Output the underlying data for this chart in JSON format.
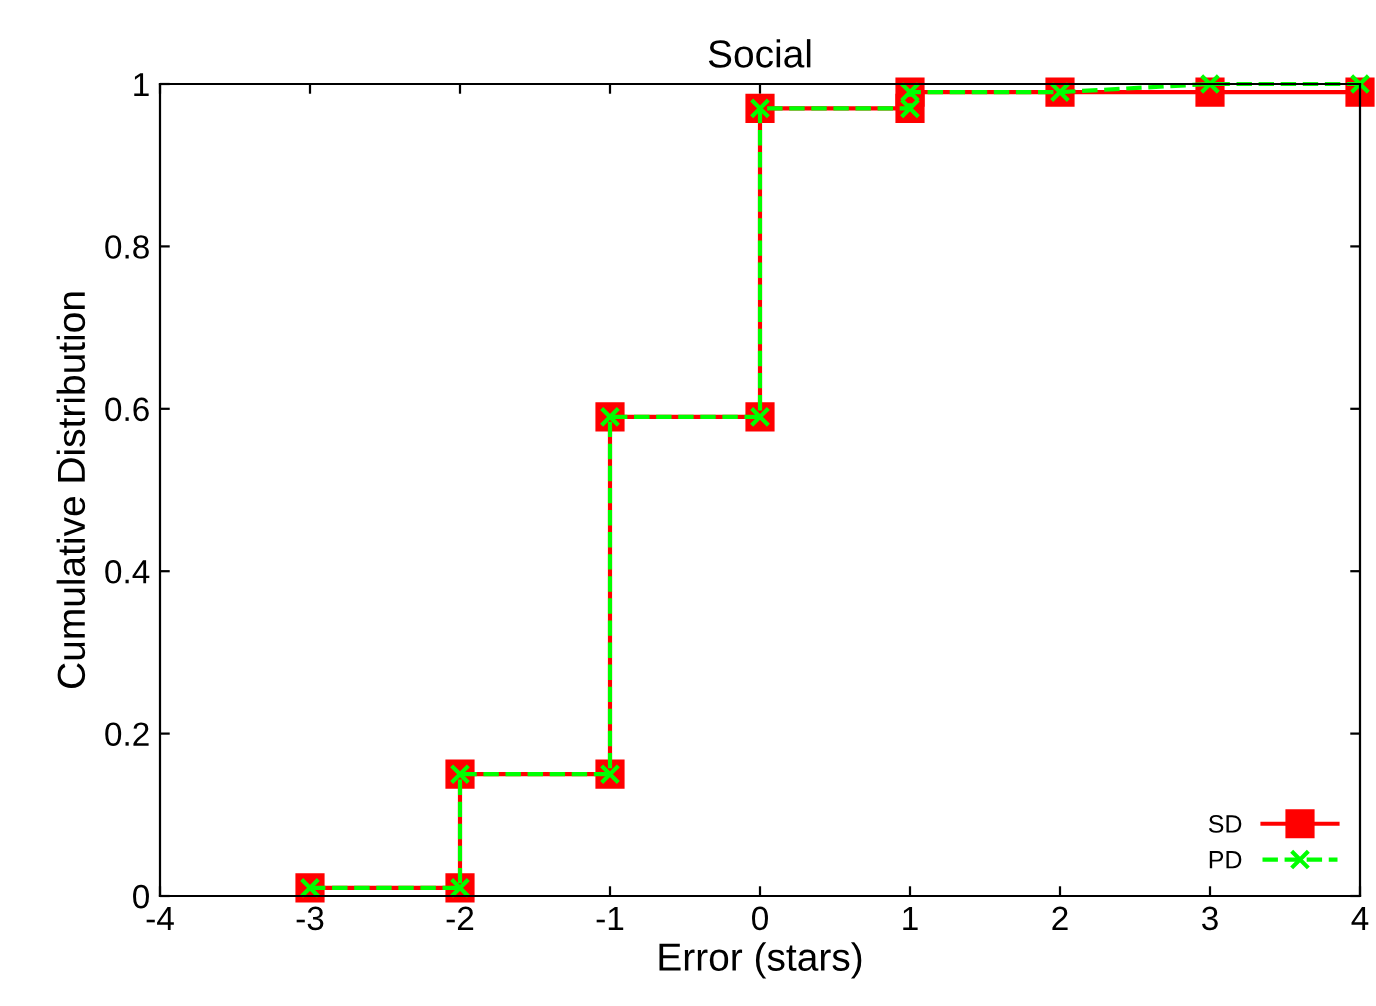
{
  "chart_data": {
    "type": "line",
    "title": "Social",
    "xlabel": "Error (stars)",
    "ylabel": "Cumulative Distribution",
    "x": [
      -3,
      -2,
      -2,
      -1,
      -1,
      0,
      0,
      1,
      1,
      2,
      3,
      4
    ],
    "series": [
      {
        "name": "SD",
        "color": "#ff0000",
        "marker": "square",
        "line_style": "solid",
        "values": [
          0.01,
          0.01,
          0.15,
          0.15,
          0.59,
          0.59,
          0.97,
          0.97,
          0.99,
          0.99,
          0.99,
          0.99
        ]
      },
      {
        "name": "PD",
        "color": "#00ff00",
        "marker": "cross",
        "line_style": "dashed",
        "values": [
          0.01,
          0.01,
          0.15,
          0.15,
          0.59,
          0.59,
          0.97,
          0.97,
          0.99,
          0.99,
          1.0,
          1.0
        ]
      }
    ],
    "xlim": [
      -4,
      4
    ],
    "xticks": [
      -4,
      -3,
      -2,
      -1,
      0,
      1,
      2,
      3,
      4
    ],
    "ylim": [
      0,
      1
    ],
    "yticks": [
      0,
      0.2,
      0.4,
      0.6,
      0.8,
      1
    ],
    "grid": false,
    "legend": "bottom right"
  }
}
